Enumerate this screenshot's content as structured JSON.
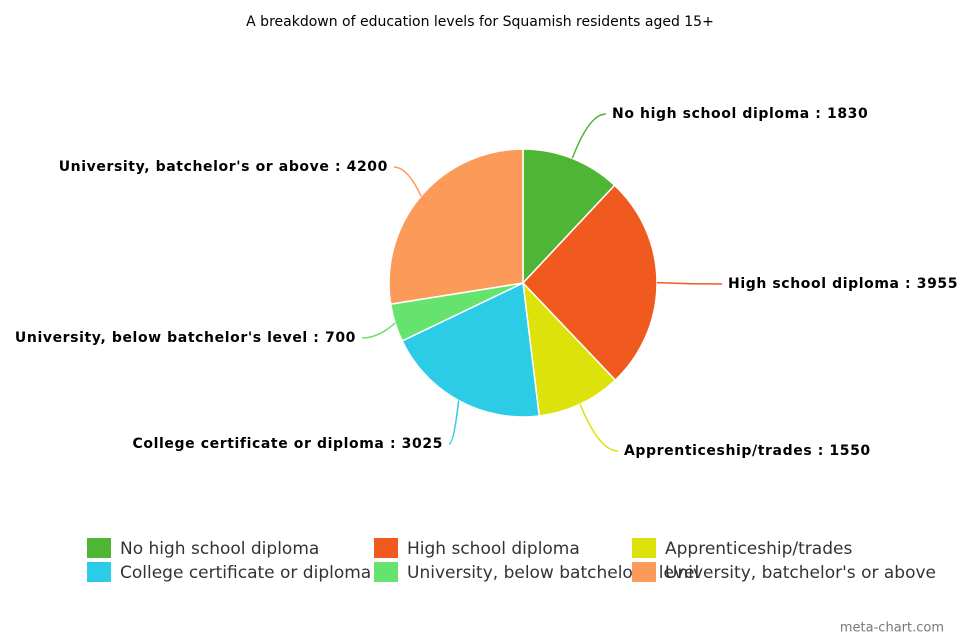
{
  "chart_data": {
    "type": "pie",
    "title": "A breakdown of education levels for Squamish residents aged 15+",
    "categories": [
      "No high school diploma",
      "High school diploma",
      "Apprenticeship/trades",
      "College certificate or diploma",
      "University, below batchelor's level",
      "University, batchelor's or above"
    ],
    "values": [
      1830,
      3955,
      1550,
      3025,
      700,
      4200
    ],
    "value_labels": [
      "No high school diploma : 1830",
      "High school diploma : 3955",
      "Apprenticeship/trades : 1550",
      "College certificate or diploma : 3025",
      "University, below batchelor's level : 700",
      "University, batchelor's or above : 4200"
    ],
    "colors": [
      "#4fb535",
      "#f05a1e",
      "#dde30a",
      "#2ccbe6",
      "#66e36e",
      "#fc9a5a"
    ],
    "watermark": "meta-chart.com"
  }
}
